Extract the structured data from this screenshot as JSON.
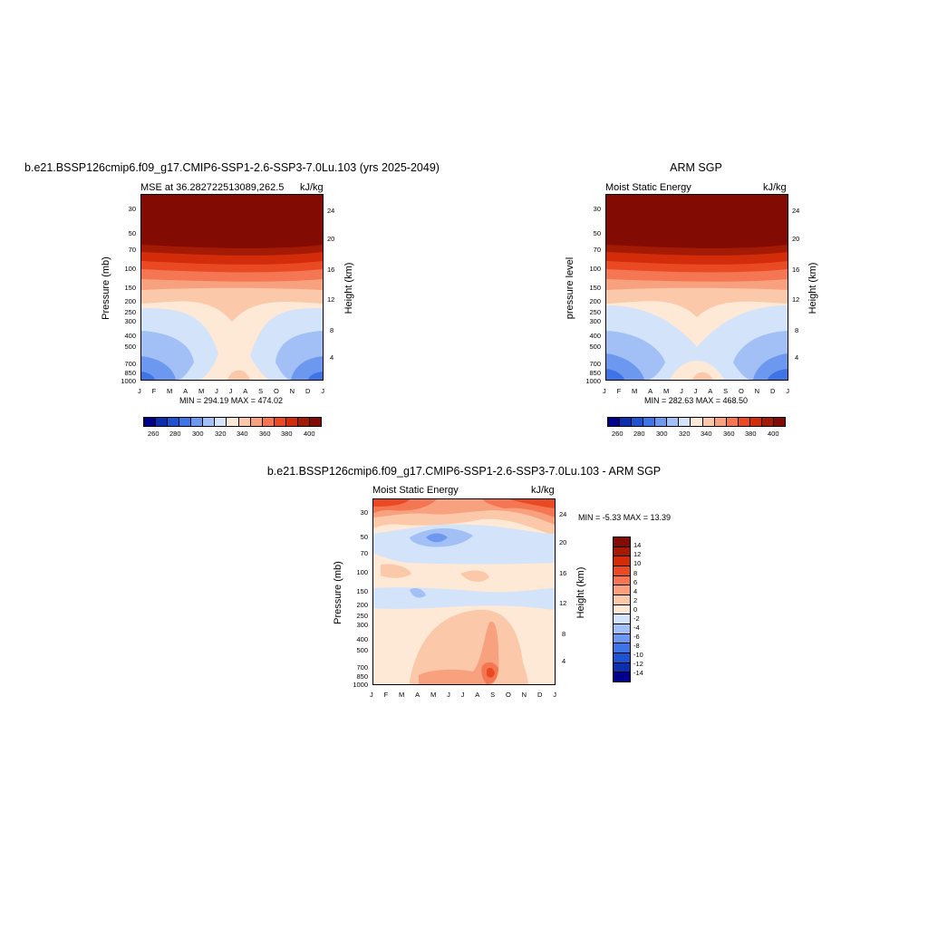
{
  "colors": {
    "levels_abs": [
      "#00008b",
      "#0c2fb0",
      "#1d52d3",
      "#3f74e6",
      "#6c98f0",
      "#a2c0f5",
      "#d2e3fa",
      "#fde9d6",
      "#fbc8a9",
      "#f8a17f",
      "#f47652",
      "#ea4a23",
      "#d32c0b",
      "#a51a04",
      "#820b03"
    ],
    "levels_diff": [
      "#00008b",
      "#0c2fb0",
      "#1d52d3",
      "#3f74e6",
      "#6c98f0",
      "#a2c0f5",
      "#d2e3fa",
      "#fde9d6",
      "#fbc8a9",
      "#f8a17f",
      "#f47652",
      "#ea4a23",
      "#d32c0b",
      "#a51a04",
      "#820b03"
    ]
  },
  "panel1": {
    "title": "b.e21.BSSP126cmip6.f09_g17.CMIP6-SSP1-2.6-SSP3-7.0Lu.103 (yrs 2025-2049)",
    "left_label": "MSE at 36.282722513089,262.5",
    "right_label": "kJ/kg",
    "ylabel": "Pressure (mb)",
    "ylabel_right": "Height (km)",
    "minmax": "MIN = 294.19 MAX = 474.02"
  },
  "panel2": {
    "title": "ARM SGP",
    "left_label": "Moist Static Energy",
    "right_label": "kJ/kg",
    "ylabel": "pressure level",
    "ylabel_right": "Height (km)",
    "minmax": "MIN = 282.63 MAX = 468.50"
  },
  "panel3": {
    "title": "b.e21.BSSP126cmip6.f09_g17.CMIP6-SSP1-2.6-SSP3-7.0Lu.103 - ARM SGP",
    "left_label": "Moist Static Energy",
    "right_label": "kJ/kg",
    "ylabel": "Pressure (mb)",
    "ylabel_right": "Height (km)",
    "minmax": "MIN =  -5.33 MAX =  13.39"
  },
  "axes": {
    "pressure_ticks": [
      "30",
      "50",
      "70",
      "100",
      "150",
      "200",
      "250",
      "300",
      "400",
      "500",
      "700",
      "850",
      "1000"
    ],
    "height_ticks": [
      "24",
      "20",
      "16",
      "12",
      "8",
      "4"
    ],
    "month_ticks": [
      "J",
      "F",
      "M",
      "A",
      "M",
      "J",
      "J",
      "A",
      "S",
      "O",
      "N",
      "D",
      "J"
    ]
  },
  "colorbar_abs": {
    "labels": [
      "260",
      "280",
      "300",
      "320",
      "340",
      "360",
      "380",
      "400"
    ]
  },
  "colorbar_diff": {
    "labels": [
      "14",
      "12",
      "10",
      "8",
      "6",
      "4",
      "2",
      "0",
      "-2",
      "-4",
      "-6",
      "-8",
      "-10",
      "-12",
      "-14"
    ]
  },
  "chart_data": [
    {
      "type": "heatmap",
      "title": "b.e21.BSSP126cmip6.f09_g17.CMIP6-SSP1-2.6-SSP3-7.0Lu.103 (yrs 2025-2049)",
      "subtitle": "MSE at 36.282722513089,262.5",
      "units": "kJ/kg",
      "xlabel": "",
      "ylabel": "Pressure (mb)",
      "x": [
        "J",
        "F",
        "M",
        "A",
        "M",
        "J",
        "J",
        "A",
        "S",
        "O",
        "N",
        "D",
        "J"
      ],
      "y_pressure": [
        30,
        50,
        70,
        100,
        150,
        200,
        250,
        300,
        400,
        500,
        700,
        850,
        1000
      ],
      "min": 294.19,
      "max": 474.02,
      "levels": [
        260,
        270,
        280,
        290,
        300,
        310,
        320,
        330,
        340,
        350,
        360,
        370,
        380,
        390,
        400
      ]
    },
    {
      "type": "heatmap",
      "title": "ARM SGP",
      "subtitle": "Moist Static Energy",
      "units": "kJ/kg",
      "ylabel": "pressure level",
      "x": [
        "J",
        "F",
        "M",
        "A",
        "M",
        "J",
        "J",
        "A",
        "S",
        "O",
        "N",
        "D",
        "J"
      ],
      "y_pressure": [
        30,
        50,
        70,
        100,
        150,
        200,
        250,
        300,
        400,
        500,
        700,
        850,
        1000
      ],
      "min": 282.63,
      "max": 468.5,
      "levels": [
        260,
        270,
        280,
        290,
        300,
        310,
        320,
        330,
        340,
        350,
        360,
        370,
        380,
        390,
        400
      ]
    },
    {
      "type": "heatmap",
      "title": "b.e21.BSSP126cmip6.f09_g17.CMIP6-SSP1-2.6-SSP3-7.0Lu.103 - ARM SGP",
      "subtitle": "Moist Static Energy",
      "units": "kJ/kg",
      "ylabel": "Pressure (mb)",
      "x": [
        "J",
        "F",
        "M",
        "A",
        "M",
        "J",
        "J",
        "A",
        "S",
        "O",
        "N",
        "D",
        "J"
      ],
      "y_pressure": [
        30,
        50,
        70,
        100,
        150,
        200,
        250,
        300,
        400,
        500,
        700,
        850,
        1000
      ],
      "min": -5.33,
      "max": 13.39,
      "levels": [
        -14,
        -12,
        -10,
        -8,
        -6,
        -4,
        -2,
        0,
        2,
        4,
        6,
        8,
        10,
        12,
        14
      ]
    }
  ]
}
